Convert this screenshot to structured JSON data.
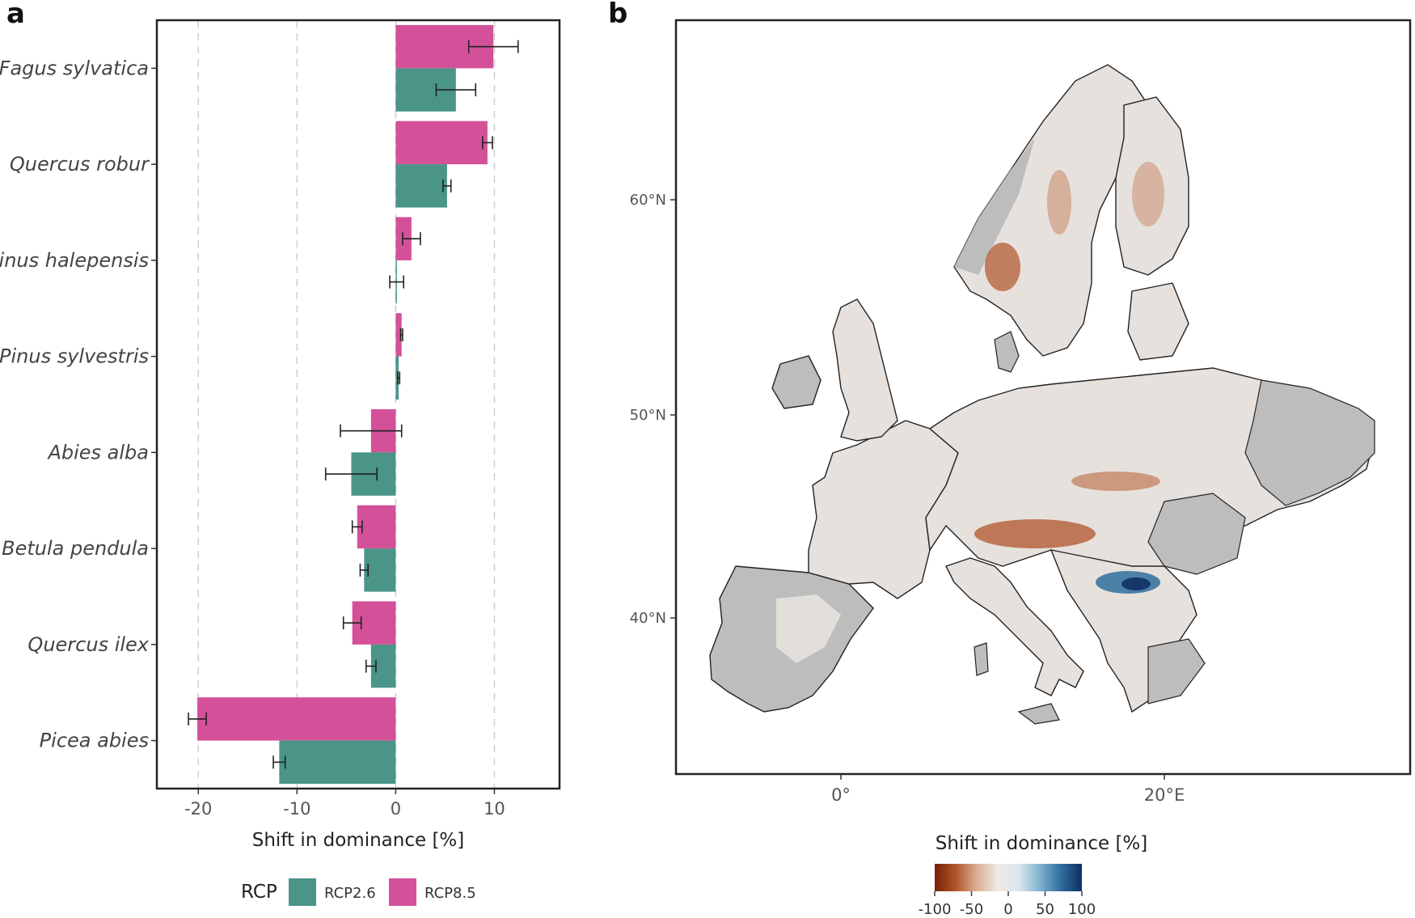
{
  "panels": {
    "a": "a",
    "b": "b"
  },
  "chart_data": [
    {
      "type": "bar",
      "orientation": "horizontal",
      "categories": [
        "Fagus sylvatica",
        "Quercus robur",
        "Pinus halepensis",
        "Pinus sylvestris",
        "Abies alba",
        "Betula pendula",
        "Quercus ilex",
        "Picea abies"
      ],
      "series": [
        {
          "name": "RCP2.6",
          "color": "#4a9488",
          "values": [
            6.1,
            5.2,
            0.1,
            0.3,
            -4.5,
            -3.2,
            -2.5,
            -11.8
          ],
          "error": [
            2.0,
            0.4,
            0.7,
            0.1,
            2.6,
            0.4,
            0.5,
            0.6
          ]
        },
        {
          "name": "RCP8.5",
          "color": "#d4519a",
          "values": [
            9.9,
            9.3,
            1.6,
            0.6,
            -2.5,
            -3.9,
            -4.4,
            -20.1
          ],
          "error": [
            2.5,
            0.5,
            0.9,
            0.1,
            3.1,
            0.5,
            0.9,
            0.9
          ]
        }
      ],
      "xlabel": "Shift in dominance [%]",
      "xlim": [
        -24.2,
        16.6
      ],
      "xticks": [
        -20,
        -10,
        0,
        10
      ],
      "xtick_labels": [
        "-20",
        "-10",
        "0",
        "10"
      ],
      "grid": "vertical-dashed",
      "legend": {
        "title": "RCP",
        "placement": "bottom",
        "entries": [
          "RCP2.6",
          "RCP8.5"
        ]
      }
    },
    {
      "type": "heatmap",
      "subtype": "map",
      "region": "Europe",
      "lat_ticks": [
        "60°N",
        "50°N",
        "40°N"
      ],
      "lon_ticks": [
        "0°",
        "20°E"
      ],
      "no_data_color": "#bdbdbd",
      "neutral_color": "#e6e1dd",
      "colorbar": {
        "title": "Shift in dominance [%]",
        "range": [
          -100,
          100
        ],
        "ticks": [
          "-100",
          "-50",
          "0",
          "50",
          "100"
        ],
        "colors": [
          "#7a1f06",
          "#b0542a",
          "#dcae94",
          "#efe9e4",
          "#dae8ee",
          "#7fb3cf",
          "#2f6e9e",
          "#0e2f66"
        ]
      },
      "highlights": [
        {
          "area": "Alps",
          "sign": "negative"
        },
        {
          "area": "Carpathians",
          "sign": "negative"
        },
        {
          "area": "Scandinavian mountains",
          "sign": "negative"
        },
        {
          "area": "Dinaric Alps",
          "sign": "positive"
        }
      ]
    }
  ]
}
